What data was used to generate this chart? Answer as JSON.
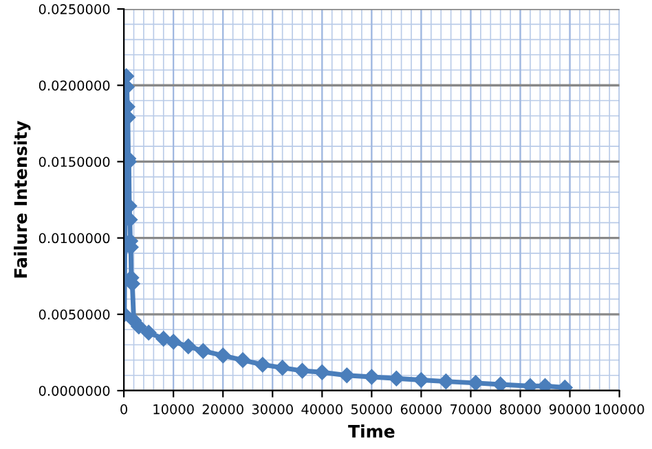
{
  "chart_data": {
    "type": "line",
    "xlabel": "Time",
    "ylabel": "Failure Intensity",
    "series": [
      {
        "color": "#4a7ebb",
        "x": [
          100,
          200,
          300,
          500,
          600,
          700,
          800,
          900,
          1000,
          1100,
          1200,
          1300,
          1400,
          1500,
          1700,
          2000,
          3000,
          5000,
          8000,
          10000,
          13000,
          16000,
          20000,
          24000,
          28000,
          32000,
          36000,
          40000,
          45000,
          50000,
          55000,
          60000,
          65000,
          71000,
          76000,
          82000,
          85000,
          89000
        ],
        "values": [
          0.005,
          0.0094,
          0.0199,
          0.0206,
          0.0199,
          0.0186,
          0.0179,
          0.0152,
          0.015,
          0.0121,
          0.0112,
          0.0098,
          0.0094,
          0.0074,
          0.007,
          0.0046,
          0.0042,
          0.0038,
          0.0034,
          0.0032,
          0.0029,
          0.0026,
          0.0023,
          0.002,
          0.0017,
          0.0015,
          0.0013,
          0.0012,
          0.001,
          0.0009,
          0.0008,
          0.0007,
          0.0006,
          0.0005,
          0.0004,
          0.0003,
          0.0003,
          0.0002
        ]
      }
    ],
    "xlim": [
      0,
      100000
    ],
    "xticks": [
      0,
      10000,
      20000,
      30000,
      40000,
      50000,
      60000,
      70000,
      80000,
      90000,
      100000
    ],
    "ylim": [
      0,
      0.025
    ],
    "yticks": [
      {
        "value": 0,
        "label": "0.0000000"
      },
      {
        "value": 0.005,
        "label": "0.0050000"
      },
      {
        "value": 0.01,
        "label": "0.0100000"
      },
      {
        "value": 0.015,
        "label": "0.0150000"
      },
      {
        "value": 0.02,
        "label": "0.0200000"
      },
      {
        "value": 0.025,
        "label": "0.0250000"
      }
    ],
    "grid": true,
    "marker": "diamond",
    "line_style": "solid"
  }
}
